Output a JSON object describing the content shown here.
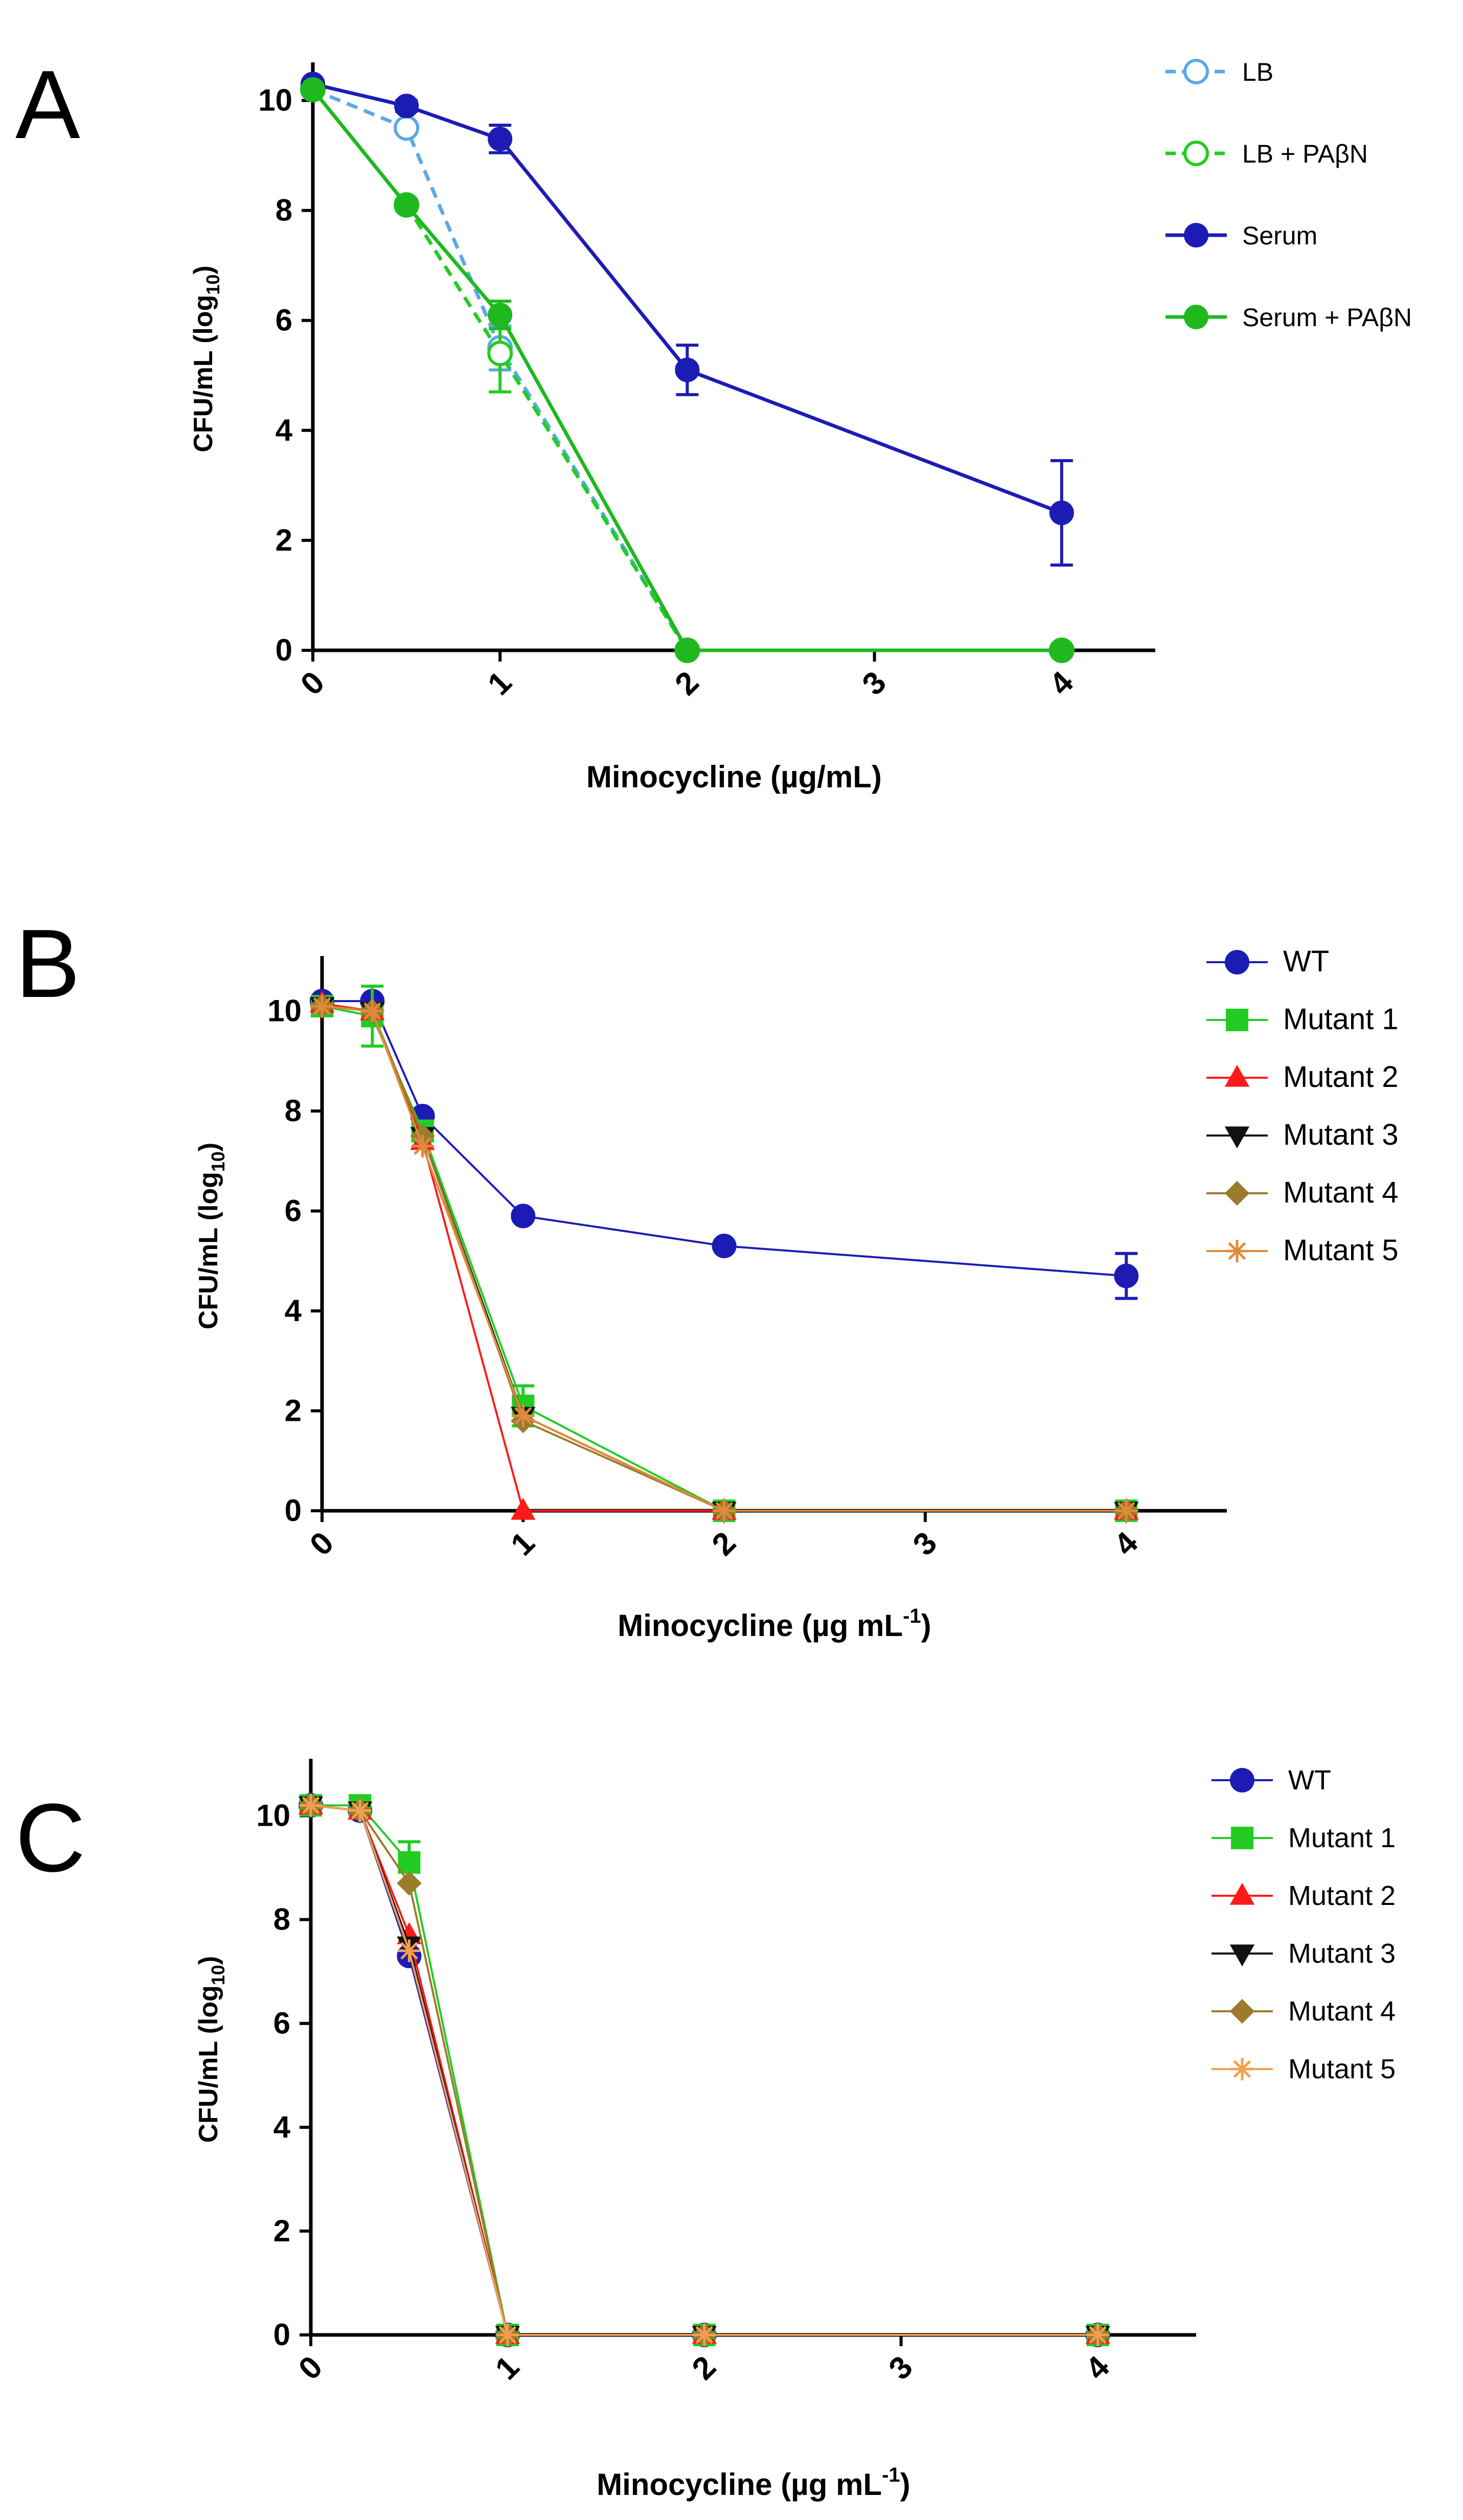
{
  "chart_data": [
    {
      "panel_label": "A",
      "type": "line",
      "x": [
        0,
        0.5,
        1,
        2,
        4
      ],
      "xticks": [
        "0",
        "1",
        "2",
        "3",
        "4"
      ],
      "yticks": [
        "0",
        "2",
        "4",
        "6",
        "8",
        "10"
      ],
      "xlabel": "Minocycline (µg/mL)",
      "ylabel": "CFU/mL (log",
      "ylabel_sub": "10",
      "ylabel_end": ")",
      "xlim": [
        0,
        4.5
      ],
      "ylim": [
        0,
        10.6
      ],
      "grid": false,
      "legend_position": "top-right",
      "series": [
        {
          "name": "LB",
          "color": "#5aa9e6",
          "marker": "circle-open",
          "dash": true,
          "values": [
            10.2,
            9.5,
            5.5,
            0,
            0
          ],
          "err": [
            0.05,
            0.1,
            0.4,
            0,
            0
          ]
        },
        {
          "name": "LB + PAβN",
          "color": "#22cc22",
          "marker": "circle-open",
          "dash": true,
          "values": [
            10.2,
            8.1,
            5.4,
            0,
            0
          ],
          "err": [
            0.05,
            0.1,
            0.7,
            0,
            0
          ]
        },
        {
          "name": "Serum",
          "color": "#1c1cb4",
          "marker": "circle",
          "dash": false,
          "values": [
            10.3,
            9.9,
            9.3,
            5.1,
            2.5
          ],
          "err": [
            0.05,
            0.1,
            0.25,
            0.45,
            0.95
          ]
        },
        {
          "name": "Serum + PAβN",
          "color": "#1fb81f",
          "marker": "circle",
          "dash": false,
          "values": [
            10.2,
            8.1,
            6.1,
            0,
            0
          ],
          "err": [
            0.05,
            0.1,
            0.25,
            0,
            0
          ]
        }
      ]
    },
    {
      "panel_label": "B",
      "type": "line",
      "x": [
        0,
        0.25,
        0.5,
        1,
        2,
        4
      ],
      "xticks": [
        "0",
        "1",
        "2",
        "3",
        "4"
      ],
      "yticks": [
        "0",
        "2",
        "4",
        "6",
        "8",
        "10"
      ],
      "xlabel": "Minocycline (µg mL",
      "xlabel_sup": "-1",
      "xlabel_end": ")",
      "ylabel": "CFU/mL (log",
      "ylabel_sub": "10",
      "ylabel_end": ")",
      "xlim": [
        0,
        4.5
      ],
      "ylim": [
        0,
        11
      ],
      "grid": false,
      "legend_position": "top-right",
      "series": [
        {
          "name": "WT",
          "color": "#1c1cb4",
          "marker": "circle",
          "dash": false,
          "values": [
            10.2,
            10.2,
            7.9,
            5.9,
            5.3,
            4.7
          ],
          "err": [
            0,
            0,
            0,
            0,
            0,
            0.45
          ]
        },
        {
          "name": "Mutant 1",
          "color": "#22cc22",
          "marker": "square",
          "dash": false,
          "values": [
            10.1,
            9.9,
            7.6,
            2.1,
            0,
            0
          ],
          "err": [
            0,
            0.6,
            0.2,
            0.4,
            0,
            0
          ]
        },
        {
          "name": "Mutant 2",
          "color": "#ff1a1a",
          "marker": "triangle-up",
          "dash": false,
          "values": [
            10.15,
            10.0,
            7.4,
            0,
            0,
            0
          ],
          "err": [
            0,
            0,
            0,
            0,
            0,
            0
          ]
        },
        {
          "name": "Mutant 3",
          "color": "#111111",
          "marker": "triangle-down",
          "dash": false,
          "values": [
            10.1,
            10.0,
            7.5,
            1.9,
            0,
            0
          ],
          "err": [
            0,
            0,
            0,
            0,
            0,
            0
          ]
        },
        {
          "name": "Mutant 4",
          "color": "#9c7b2c",
          "marker": "diamond",
          "dash": false,
          "values": [
            10.1,
            10.0,
            7.5,
            1.8,
            0,
            0
          ],
          "err": [
            0,
            0,
            0,
            0,
            0,
            0
          ]
        },
        {
          "name": "Mutant 5",
          "color": "#e08a3c",
          "marker": "asterisk",
          "dash": false,
          "values": [
            10.1,
            10.0,
            7.3,
            1.9,
            0,
            0
          ],
          "err": [
            0,
            0,
            0,
            0,
            0,
            0
          ]
        }
      ]
    },
    {
      "panel_label": "C",
      "type": "line",
      "x": [
        0,
        0.25,
        0.5,
        1,
        2,
        4
      ],
      "xticks": [
        "0",
        "1",
        "2",
        "3",
        "4"
      ],
      "yticks": [
        "0",
        "2",
        "4",
        "6",
        "8",
        "10"
      ],
      "xlabel": "Minocycline (µg mL",
      "xlabel_sup": "-1",
      "xlabel_end": ")",
      "ylabel": "CFU/mL (log",
      "ylabel_sub": "10",
      "ylabel_end": ")",
      "xlim": [
        0,
        4.5
      ],
      "ylim": [
        0,
        11
      ],
      "grid": false,
      "legend_position": "top-right",
      "series": [
        {
          "name": "WT",
          "color": "#1c1cb4",
          "marker": "circle",
          "dash": false,
          "values": [
            10.2,
            10.1,
            7.3,
            0,
            0,
            0
          ],
          "err": [
            0,
            0,
            0,
            0,
            0,
            0
          ]
        },
        {
          "name": "Mutant 1",
          "color": "#22cc22",
          "marker": "square",
          "dash": false,
          "values": [
            10.2,
            10.2,
            9.1,
            0,
            0,
            0
          ],
          "err": [
            0,
            0,
            0.4,
            0,
            0,
            0
          ]
        },
        {
          "name": "Mutant 2",
          "color": "#ff1a1a",
          "marker": "triangle-up",
          "dash": false,
          "values": [
            10.2,
            10.1,
            7.7,
            0,
            0,
            0
          ],
          "err": [
            0,
            0,
            0,
            0,
            0,
            0
          ]
        },
        {
          "name": "Mutant 3",
          "color": "#111111",
          "marker": "triangle-down",
          "dash": false,
          "values": [
            10.2,
            10.1,
            7.5,
            0,
            0,
            0
          ],
          "err": [
            0,
            0,
            0,
            0,
            0,
            0
          ]
        },
        {
          "name": "Mutant 4",
          "color": "#9c7b2c",
          "marker": "diamond",
          "dash": false,
          "values": [
            10.2,
            10.1,
            8.7,
            0,
            0,
            0
          ],
          "err": [
            0,
            0,
            0,
            0,
            0,
            0
          ]
        },
        {
          "name": "Mutant 5",
          "color": "#f0a050",
          "marker": "asterisk",
          "dash": false,
          "values": [
            10.2,
            10.1,
            7.4,
            0,
            0,
            0
          ],
          "err": [
            0,
            0,
            0,
            0,
            0,
            0
          ]
        }
      ]
    }
  ]
}
